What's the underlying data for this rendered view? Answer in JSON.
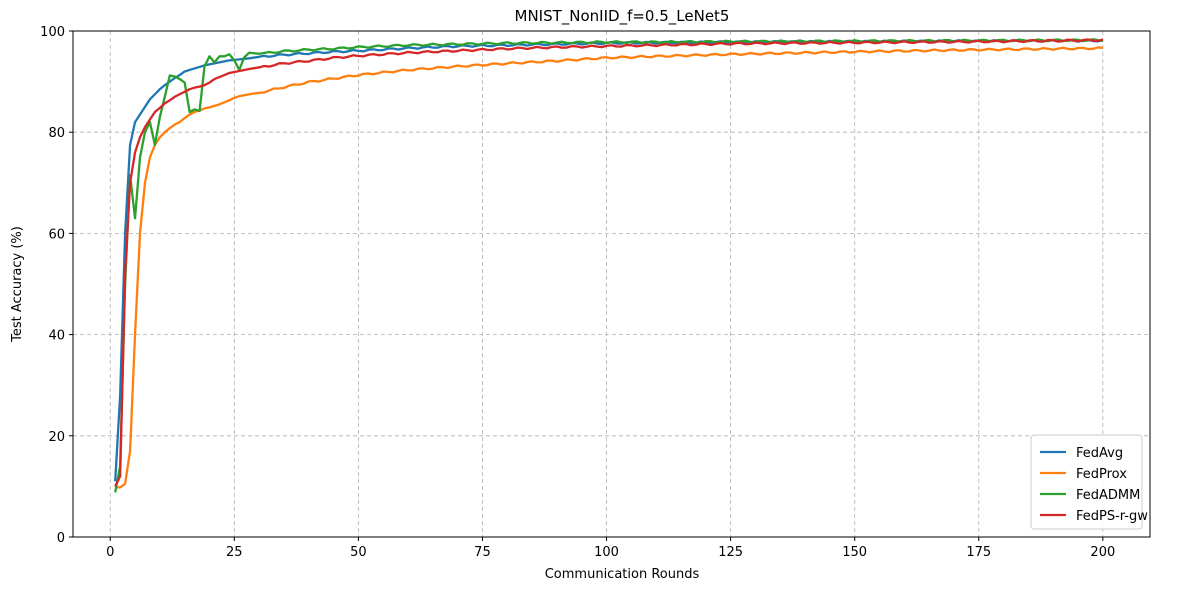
{
  "chart_data": {
    "type": "line",
    "title": "MNIST_NonIID_f=0.5_LeNet5",
    "xlabel": "Communication Rounds",
    "ylabel": "Test Accuracy (%)",
    "xlim": [
      -7.5,
      209.5
    ],
    "ylim": [
      0,
      100
    ],
    "xticks": [
      0,
      25,
      50,
      75,
      100,
      125,
      150,
      175,
      200
    ],
    "yticks": [
      0,
      20,
      40,
      60,
      80,
      100
    ],
    "grid": true,
    "legend_position": "lower-right",
    "x_anchors": [
      1,
      2,
      3,
      4,
      5,
      6,
      7,
      8,
      9,
      10,
      11,
      12,
      13,
      14,
      15,
      16,
      17,
      18,
      19,
      20,
      21,
      22,
      23,
      24,
      25,
      26,
      27,
      28,
      30,
      35,
      40,
      45,
      50,
      60,
      70,
      75,
      80,
      90,
      100,
      110,
      125,
      150,
      175,
      200
    ],
    "series": [
      {
        "name": "FedAvg",
        "color": "#1f77b4",
        "values": [
          11,
          28,
          60,
          77.5,
          82,
          83.5,
          85,
          86.5,
          87.5,
          88.5,
          89.3,
          90,
          90.7,
          91.3,
          92,
          92.3,
          92.6,
          92.9,
          93.2,
          93.4,
          93.6,
          93.8,
          94,
          94.2,
          94.3,
          94.4,
          94.5,
          94.6,
          94.9,
          95.3,
          95.6,
          95.9,
          96.1,
          96.6,
          97,
          97.1,
          97.2,
          97.4,
          97.6,
          97.7,
          97.8,
          97.9,
          98,
          98.1
        ]
      },
      {
        "name": "FedProx",
        "color": "#ff7f0e",
        "values": [
          9.8,
          9.8,
          10.5,
          17,
          40,
          60,
          70,
          75,
          77.5,
          79,
          80,
          80.8,
          81.5,
          82,
          82.8,
          83.5,
          84,
          84.3,
          84.7,
          84.9,
          85.2,
          85.5,
          85.9,
          86.3,
          86.8,
          87.1,
          87.3,
          87.5,
          87.8,
          88.9,
          89.9,
          90.6,
          91.3,
          92.3,
          93,
          93.3,
          93.6,
          94.1,
          94.7,
          95,
          95.4,
          95.9,
          96.3,
          96.6
        ]
      },
      {
        "name": "FedADMM",
        "color": "#2ca02c",
        "values": [
          8.8,
          14,
          50,
          71.5,
          63,
          75,
          80,
          82,
          77.5,
          83,
          87,
          91.2,
          91,
          90.5,
          89.8,
          84,
          84.5,
          84.2,
          93,
          95,
          93.8,
          95,
          95,
          95.4,
          94.2,
          92.3,
          94.8,
          95.7,
          95.5,
          96,
          96.3,
          96.5,
          96.8,
          97.2,
          97.4,
          97.5,
          97.6,
          97.7,
          97.8,
          97.8,
          97.9,
          98,
          98.1,
          98.2
        ]
      },
      {
        "name": "FedPS-r-gw",
        "color": "#d62728",
        "values": [
          10,
          12,
          52,
          70,
          76,
          79,
          81,
          82.5,
          84,
          84.8,
          85.7,
          86.3,
          87,
          87.5,
          88,
          88.5,
          88.8,
          89,
          89.3,
          89.8,
          90.5,
          90.9,
          91.3,
          91.7,
          91.9,
          92.1,
          92.3,
          92.5,
          92.8,
          93.6,
          94.1,
          94.7,
          95.1,
          95.7,
          96.1,
          96.3,
          96.5,
          96.8,
          97,
          97.2,
          97.5,
          97.7,
          97.9,
          98.2
        ]
      }
    ]
  }
}
